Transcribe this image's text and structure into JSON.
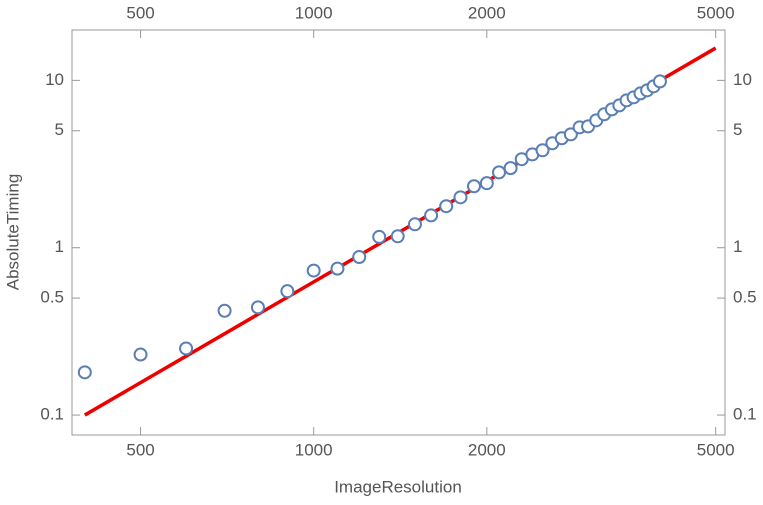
{
  "chart_data": {
    "type": "scatter",
    "xlabel": "ImageResolution",
    "ylabel": "AbsoluteTiming",
    "log_x": true,
    "log_y": true,
    "grid": false,
    "frame_ticks_mirrored": true,
    "xlim": [
      380,
      5190
    ],
    "ylim": [
      0.076,
      20
    ],
    "xticks": [
      500,
      1000,
      2000,
      5000
    ],
    "yticks": [
      0.1,
      0.5,
      1,
      5,
      10
    ],
    "series": [
      {
        "color": "#5a7fb5",
        "x": [
          400,
          500,
          600,
          700,
          800,
          900,
          1000,
          1100,
          1200,
          1300,
          1400,
          1500,
          1600,
          1700,
          1800,
          1900,
          2000,
          2100,
          2200,
          2300,
          2400,
          2500,
          2600,
          2700,
          2800,
          2900,
          3000,
          3100,
          3200,
          3300,
          3400,
          3500,
          3600,
          3700,
          3800,
          3900,
          4000
        ],
        "values": [
          0.18,
          0.23,
          0.25,
          0.42,
          0.44,
          0.55,
          0.73,
          0.75,
          0.88,
          1.16,
          1.17,
          1.38,
          1.56,
          1.77,
          2.0,
          2.33,
          2.43,
          2.82,
          2.99,
          3.38,
          3.61,
          3.82,
          4.21,
          4.51,
          4.76,
          5.24,
          5.31,
          5.77,
          6.27,
          6.71,
          7.09,
          7.6,
          7.92,
          8.36,
          8.72,
          9.21,
          9.86
        ]
      }
    ],
    "fit": {
      "color": "#ee0000",
      "x": [
        400,
        5000
      ],
      "values": [
        0.1,
        15.6
      ]
    }
  }
}
